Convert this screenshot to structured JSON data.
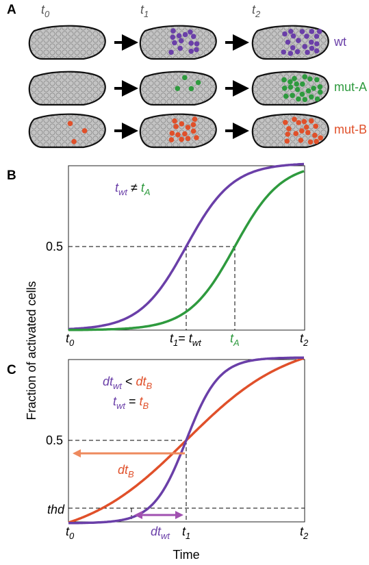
{
  "panel_a": {
    "label": "A",
    "times": [
      {
        "main": "t",
        "sub": "0"
      },
      {
        "main": "t",
        "sub": "1"
      },
      {
        "main": "t",
        "sub": "2"
      }
    ],
    "rows": [
      "wt",
      "mut-A",
      "mut-B"
    ]
  },
  "panel_b": {
    "label": "B",
    "annotation": [
      {
        "main": "t",
        "sub": "wt"
      },
      {
        "main": " ≠ "
      },
      {
        "main": "t",
        "sub": "A"
      }
    ],
    "y_tick": "0.5",
    "x_labels": [
      {
        "main": "t",
        "sub": "0"
      },
      {
        "main": "t",
        "sub": "1"
      },
      {
        "main": "= "
      },
      {
        "main": "t",
        "sub": "wt"
      },
      {
        "main": "t",
        "sub": "A"
      },
      {
        "main": "t",
        "sub": "2"
      }
    ]
  },
  "panel_c": {
    "label": "C",
    "annotation_1": [
      {
        "main": "dt",
        "sub": "wt"
      },
      {
        "main": " < "
      },
      {
        "main": "dt",
        "sub": "B"
      }
    ],
    "annotation_2": [
      {
        "main": "t",
        "sub": "wt"
      },
      {
        "main": " = "
      },
      {
        "main": "t",
        "sub": "B"
      }
    ],
    "y_tick": "0.5",
    "threshold": "thd",
    "dt_b": {
      "main": "dt",
      "sub": "B"
    },
    "dt_wt": {
      "main": "dt",
      "sub": "wt"
    },
    "x_labels": [
      {
        "main": "t",
        "sub": "0"
      },
      {
        "main": "t",
        "sub": "1"
      },
      {
        "main": "t",
        "sub": "2"
      }
    ],
    "x_axis_label": "Time"
  },
  "y_axis_label": "Fraction of activated cells"
}
